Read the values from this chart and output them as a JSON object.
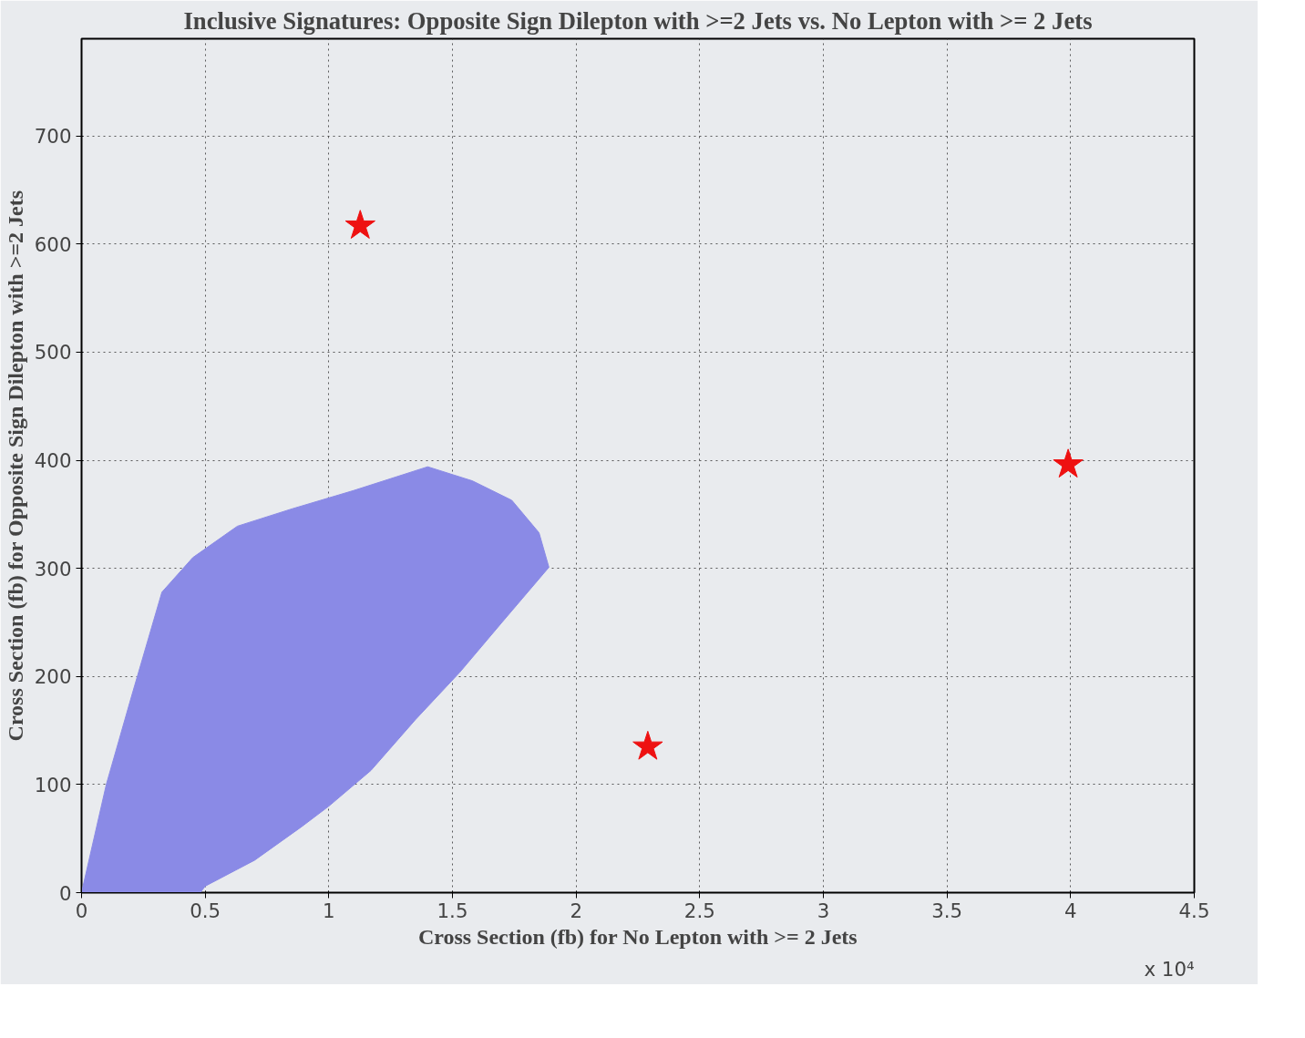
{
  "chart_data": {
    "type": "scatter",
    "title": "Inclusive Signatures: Opposite Sign Dilepton with >=2 Jets vs. No Lepton with >= 2 Jets",
    "xlabel": "Cross Section (fb) for No Lepton with >= 2 Jets",
    "ylabel": "Cross Section (fb) for Opposite Sign Dilepton with >=2 Jets",
    "series": [
      {
        "type": "area",
        "color": "#8a8ae6",
        "x": [
          0,
          0.1,
          0.2,
          0.325,
          0.45,
          0.63,
          0.85,
          1.1,
          1.4,
          1.58,
          1.74,
          1.85,
          1.89,
          1.7,
          1.53,
          1.35,
          1.17,
          1.0,
          0.89,
          0.7,
          0.5,
          0.48
        ],
        "values": [
          0,
          100,
          180,
          278,
          310,
          339,
          355,
          372,
          394,
          381,
          363,
          333,
          301,
          250,
          204,
          160,
          113,
          80,
          61,
          30,
          6,
          0
        ]
      },
      {
        "color": "#ee1111",
        "marker": "star",
        "x": [
          1.127,
          2.29,
          3.99
        ],
        "values": [
          617,
          135,
          396
        ]
      }
    ],
    "xlim": [
      0,
      4.5
    ],
    "ylim": [
      0,
      790
    ],
    "xticks": [
      0,
      0.5,
      1,
      1.5,
      2,
      2.5,
      3,
      3.5,
      4,
      4.5
    ],
    "yticks": [
      0,
      100,
      200,
      300,
      400,
      500,
      600,
      700
    ],
    "grid": true,
    "line_style": "dotted",
    "annotations": [
      "x 10⁴"
    ]
  }
}
